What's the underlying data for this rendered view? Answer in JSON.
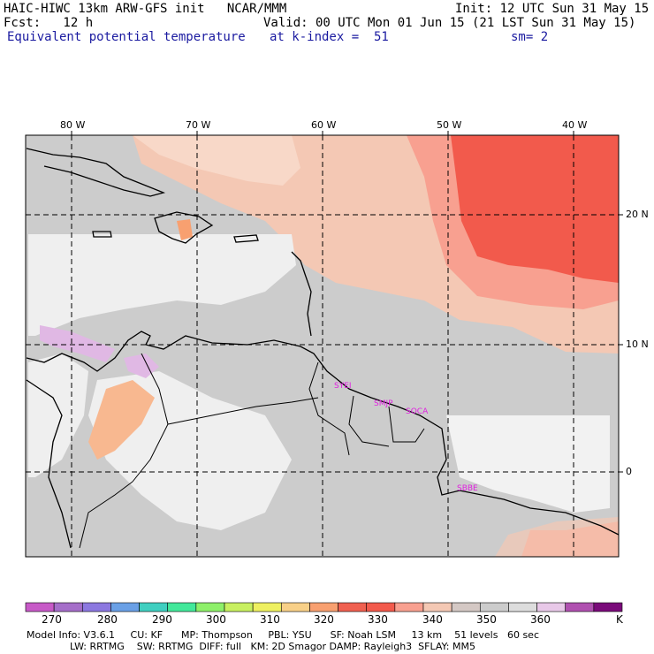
{
  "header": {
    "line1_left": "HAIC-HIWC 13km ARW-GFS init   NCAR/MMM",
    "line1_right": "Init: 12 UTC Sun 31 May 15",
    "line2_left": "Fcst:   12 h",
    "line2_right": "Valid: 00 UTC Mon 01 Jun 15 (21 LST Sun 31 May 15)",
    "line3_left": "Equivalent potential temperature",
    "line3_mid": "at k-index =  51",
    "line3_right": "sm= 2"
  },
  "map": {
    "lon_labels": [
      "80 W",
      "70 W",
      "60 W",
      "50 W",
      "40 W"
    ],
    "lat_labels": [
      "20 N",
      "10 N",
      "0"
    ],
    "sites": [
      "SYEI",
      "SMJP",
      "SOCA",
      "SBBE"
    ]
  },
  "colorbar": {
    "colors": [
      "#c75ac7",
      "#a56ec9",
      "#8c78e0",
      "#6aa0e6",
      "#3fcfc0",
      "#42e89a",
      "#8ef06a",
      "#c8f060",
      "#eef060",
      "#f8d088",
      "#f8a070",
      "#f06050",
      "#f25a4c",
      "#f8a090",
      "#f4c8b4",
      "#d4c8c4",
      "#cccccc",
      "#dddddd",
      "#e8c8e8",
      "#b050b0",
      "#7a0a7a"
    ],
    "tick_labels": [
      "270",
      "280",
      "290",
      "300",
      "310",
      "320",
      "330",
      "340",
      "350",
      "360"
    ],
    "unit": "K"
  },
  "model_info": {
    "line1": "Model Info: V3.6.1     CU: KF      MP: Thompson     PBL: YSU      SF: Noah LSM     13 km    51 levels   60 sec",
    "line2": "              LW: RRTMG    SW: RRTMG  DIFF: full   KM: 2D Smagor DAMP: Rayleigh3  SFLAY: MM5"
  }
}
